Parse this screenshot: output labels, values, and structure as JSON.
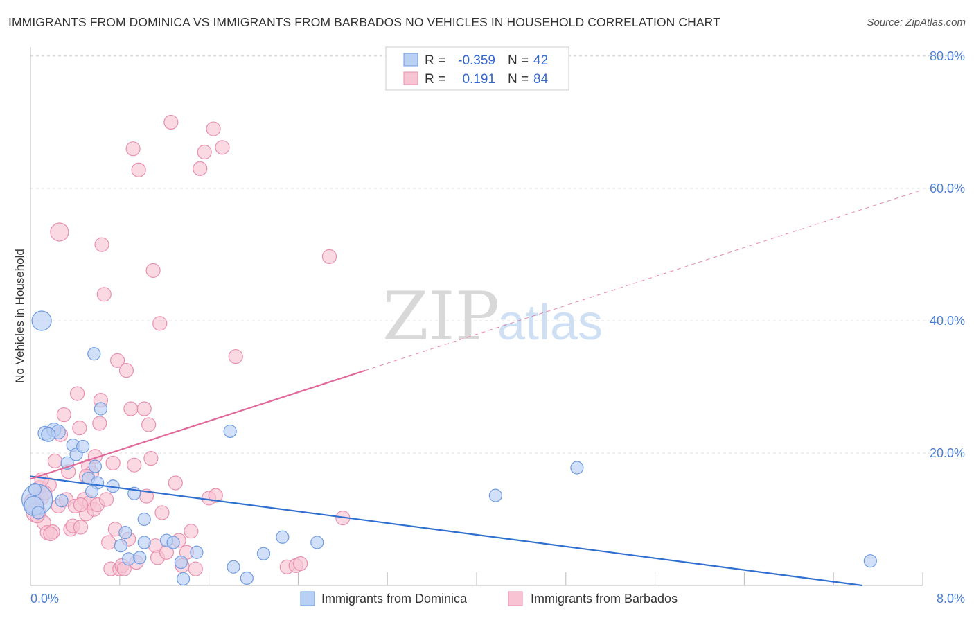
{
  "title": "IMMIGRANTS FROM DOMINICA VS IMMIGRANTS FROM BARBADOS NO VEHICLES IN HOUSEHOLD CORRELATION CHART",
  "source": "Source: ZipAtlas.com",
  "watermark": {
    "zip": "ZIP",
    "atlas": "atlas"
  },
  "colors": {
    "dominica_fill": "#b8d0f4",
    "dominica_stroke": "#6f9be0",
    "dominica_line": "#2f6fd0",
    "barbados_fill": "#f8c4d4",
    "barbados_stroke": "#e98fae",
    "barbados_line": "#e2689a",
    "grid": "#dcdcdc",
    "tick": "#4a7fd4"
  },
  "legend": {
    "rows": [
      {
        "r_label": "R =",
        "r_value": "-0.359",
        "n_label": "N =",
        "n_value": "42"
      },
      {
        "r_label": "R =",
        "r_value": "0.191",
        "n_label": "N =",
        "n_value": "84"
      }
    ]
  },
  "bottom_legend": {
    "dominica": "Immigrants from Dominica",
    "barbados": "Immigrants from Barbados"
  },
  "chart_data": {
    "type": "scatter",
    "title": "IMMIGRANTS FROM DOMINICA VS IMMIGRANTS FROM BARBADOS NO VEHICLES IN HOUSEHOLD CORRELATION CHART",
    "xlabel": "",
    "ylabel": "No Vehicles in Household",
    "xlim": [
      0,
      8
    ],
    "ylim": [
      0,
      80
    ],
    "x_tick_labels": [
      "0.0%",
      "8.0%"
    ],
    "y_ticks": [
      20,
      40,
      60,
      80
    ],
    "y_tick_labels": [
      "20.0%",
      "40.0%",
      "60.0%",
      "80.0%"
    ],
    "series": [
      {
        "name": "Immigrants from Dominica",
        "r": -0.359,
        "n": 42,
        "trend": {
          "x0": 0,
          "y0": 16.5,
          "x1": 8,
          "y1": -1.2,
          "solid_to": 8
        },
        "points": [
          [
            0.1,
            40.0,
            14
          ],
          [
            0.06,
            13.0,
            22
          ],
          [
            0.03,
            12.0,
            14
          ],
          [
            0.13,
            23.0,
            10
          ],
          [
            0.21,
            23.5,
            10
          ],
          [
            0.25,
            23.2,
            10
          ],
          [
            0.16,
            22.8,
            10
          ],
          [
            0.38,
            21.2,
            9
          ],
          [
            0.33,
            18.5,
            9
          ],
          [
            0.41,
            19.8,
            9
          ],
          [
            0.47,
            21.0,
            9
          ],
          [
            0.57,
            35.0,
            9
          ],
          [
            0.63,
            26.7,
            9
          ],
          [
            0.58,
            18.0,
            9
          ],
          [
            0.52,
            16.2,
            9
          ],
          [
            0.6,
            15.5,
            9
          ],
          [
            0.55,
            14.2,
            9
          ],
          [
            0.74,
            15.0,
            9
          ],
          [
            0.93,
            13.9,
            9
          ],
          [
            1.02,
            10.0,
            9
          ],
          [
            0.85,
            8.0,
            9
          ],
          [
            0.81,
            6.0,
            9
          ],
          [
            0.88,
            4.0,
            9
          ],
          [
            0.98,
            4.2,
            9
          ],
          [
            1.02,
            6.5,
            9
          ],
          [
            1.22,
            6.8,
            9
          ],
          [
            1.28,
            6.5,
            9
          ],
          [
            1.35,
            3.5,
            9
          ],
          [
            1.37,
            1.0,
            9
          ],
          [
            1.49,
            5.0,
            9
          ],
          [
            1.79,
            23.3,
            9
          ],
          [
            1.82,
            2.8,
            9
          ],
          [
            1.94,
            1.1,
            9
          ],
          [
            2.09,
            4.8,
            9
          ],
          [
            2.26,
            7.3,
            9
          ],
          [
            2.57,
            6.5,
            9
          ],
          [
            4.17,
            13.6,
            9
          ],
          [
            4.9,
            17.8,
            9
          ],
          [
            7.53,
            3.7,
            9
          ],
          [
            0.04,
            14.5,
            9
          ],
          [
            0.07,
            11.0,
            9
          ],
          [
            0.28,
            12.8,
            9
          ]
        ]
      },
      {
        "name": "Immigrants from Barbados",
        "r": 0.191,
        "n": 84,
        "trend": {
          "x0": 0,
          "y0": 16.1,
          "x1": 8,
          "y1": 59.8,
          "solid_to": 3.0
        },
        "points": [
          [
            0.03,
            12.5,
            14
          ],
          [
            0.05,
            11.0,
            14
          ],
          [
            0.08,
            14.8,
            10
          ],
          [
            0.1,
            13.2,
            10
          ],
          [
            0.12,
            9.5,
            10
          ],
          [
            0.15,
            8.0,
            10
          ],
          [
            0.17,
            15.2,
            10
          ],
          [
            0.2,
            8.1,
            10
          ],
          [
            0.22,
            18.8,
            10
          ],
          [
            0.25,
            12.0,
            10
          ],
          [
            0.27,
            22.8,
            10
          ],
          [
            0.3,
            25.8,
            10
          ],
          [
            0.32,
            13.0,
            10
          ],
          [
            0.34,
            17.2,
            10
          ],
          [
            0.36,
            8.5,
            10
          ],
          [
            0.38,
            9.0,
            10
          ],
          [
            0.4,
            12.0,
            10
          ],
          [
            0.42,
            29.0,
            10
          ],
          [
            0.44,
            23.8,
            10
          ],
          [
            0.45,
            8.8,
            10
          ],
          [
            0.48,
            13.0,
            10
          ],
          [
            0.5,
            10.8,
            10
          ],
          [
            0.52,
            18.0,
            10
          ],
          [
            0.53,
            12.5,
            10
          ],
          [
            0.55,
            17.0,
            10
          ],
          [
            0.57,
            11.5,
            10
          ],
          [
            0.58,
            19.5,
            10
          ],
          [
            0.6,
            12.2,
            10
          ],
          [
            0.62,
            24.5,
            10
          ],
          [
            0.63,
            28.0,
            10
          ],
          [
            0.64,
            51.5,
            10
          ],
          [
            0.66,
            44.0,
            10
          ],
          [
            0.68,
            13.0,
            10
          ],
          [
            0.7,
            6.5,
            10
          ],
          [
            0.72,
            2.5,
            10
          ],
          [
            0.74,
            18.5,
            10
          ],
          [
            0.76,
            8.5,
            10
          ],
          [
            0.78,
            34.0,
            10
          ],
          [
            0.8,
            2.5,
            10
          ],
          [
            0.82,
            3.0,
            10
          ],
          [
            0.84,
            2.5,
            10
          ],
          [
            0.86,
            32.5,
            10
          ],
          [
            0.88,
            7.0,
            10
          ],
          [
            0.9,
            26.7,
            10
          ],
          [
            0.92,
            66.0,
            10
          ],
          [
            0.93,
            18.2,
            10
          ],
          [
            0.95,
            3.5,
            10
          ],
          [
            0.97,
            62.8,
            10
          ],
          [
            1.02,
            26.7,
            10
          ],
          [
            1.04,
            13.5,
            10
          ],
          [
            1.06,
            24.3,
            10
          ],
          [
            1.08,
            19.2,
            10
          ],
          [
            1.1,
            47.6,
            10
          ],
          [
            1.12,
            6.0,
            10
          ],
          [
            1.14,
            4.2,
            10
          ],
          [
            1.16,
            39.6,
            10
          ],
          [
            1.18,
            11.0,
            10
          ],
          [
            1.22,
            5.0,
            10
          ],
          [
            1.26,
            70.0,
            10
          ],
          [
            1.3,
            15.5,
            10
          ],
          [
            1.33,
            6.8,
            10
          ],
          [
            1.36,
            3.0,
            10
          ],
          [
            1.4,
            5.0,
            10
          ],
          [
            1.44,
            8.2,
            10
          ],
          [
            1.48,
            2.5,
            10
          ],
          [
            1.52,
            63.0,
            10
          ],
          [
            1.56,
            65.5,
            10
          ],
          [
            1.6,
            13.2,
            10
          ],
          [
            1.64,
            69.0,
            10
          ],
          [
            1.66,
            13.6,
            10
          ],
          [
            1.72,
            66.2,
            10
          ],
          [
            1.84,
            34.6,
            10
          ],
          [
            2.3,
            2.8,
            10
          ],
          [
            2.38,
            3.0,
            10
          ],
          [
            2.42,
            3.3,
            10
          ],
          [
            2.68,
            49.7,
            10
          ],
          [
            2.8,
            10.2,
            10
          ],
          [
            0.26,
            53.4,
            13
          ],
          [
            0.1,
            16.0,
            10
          ],
          [
            0.06,
            10.5,
            10
          ],
          [
            0.13,
            14.0,
            10
          ],
          [
            0.18,
            7.8,
            10
          ],
          [
            0.45,
            12.2,
            10
          ],
          [
            0.5,
            16.5,
            10
          ]
        ]
      }
    ]
  }
}
